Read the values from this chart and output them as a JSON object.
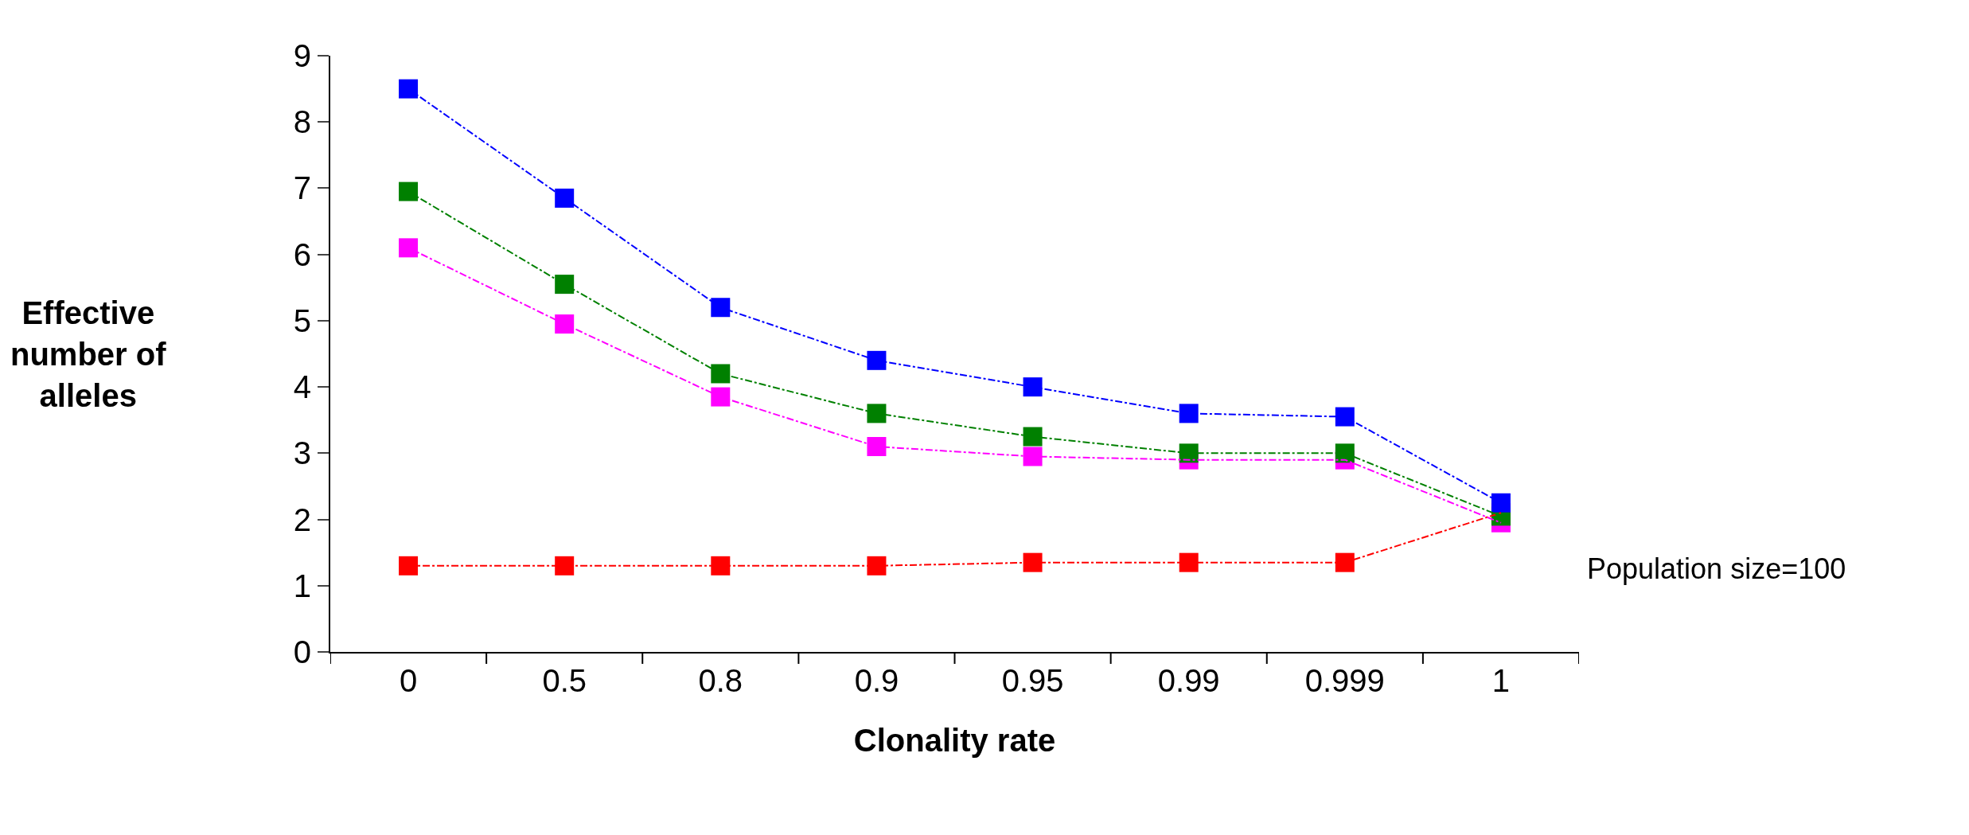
{
  "chart_data": {
    "type": "line",
    "xlabel": "Clonality rate",
    "ylabel": "Effective\nnumber of\nalleles",
    "categories": [
      "0",
      "0.5",
      "0.8",
      "0.9",
      "0.95",
      "0.99",
      "0.999",
      "1"
    ],
    "series": [
      {
        "color": "#ff0000",
        "values": [
          1.3,
          1.3,
          1.3,
          1.3,
          1.35,
          1.35,
          1.35,
          2.1
        ]
      },
      {
        "color": "#ff00ff",
        "values": [
          6.1,
          4.95,
          3.85,
          3.1,
          2.95,
          2.9,
          2.9,
          1.95
        ]
      },
      {
        "color": "#008000",
        "values": [
          6.95,
          5.55,
          4.2,
          3.6,
          3.25,
          3.0,
          3.0,
          2.05
        ]
      },
      {
        "color": "#0000ff",
        "values": [
          8.5,
          6.85,
          5.2,
          4.4,
          4.0,
          3.6,
          3.55,
          2.25
        ]
      }
    ],
    "ylim": [
      0,
      9
    ],
    "yticks": [
      0,
      1,
      2,
      3,
      4,
      5,
      6,
      7,
      8,
      9
    ],
    "annotations": [
      "Population size=100"
    ],
    "marker": "square",
    "line_style": "dashed"
  }
}
